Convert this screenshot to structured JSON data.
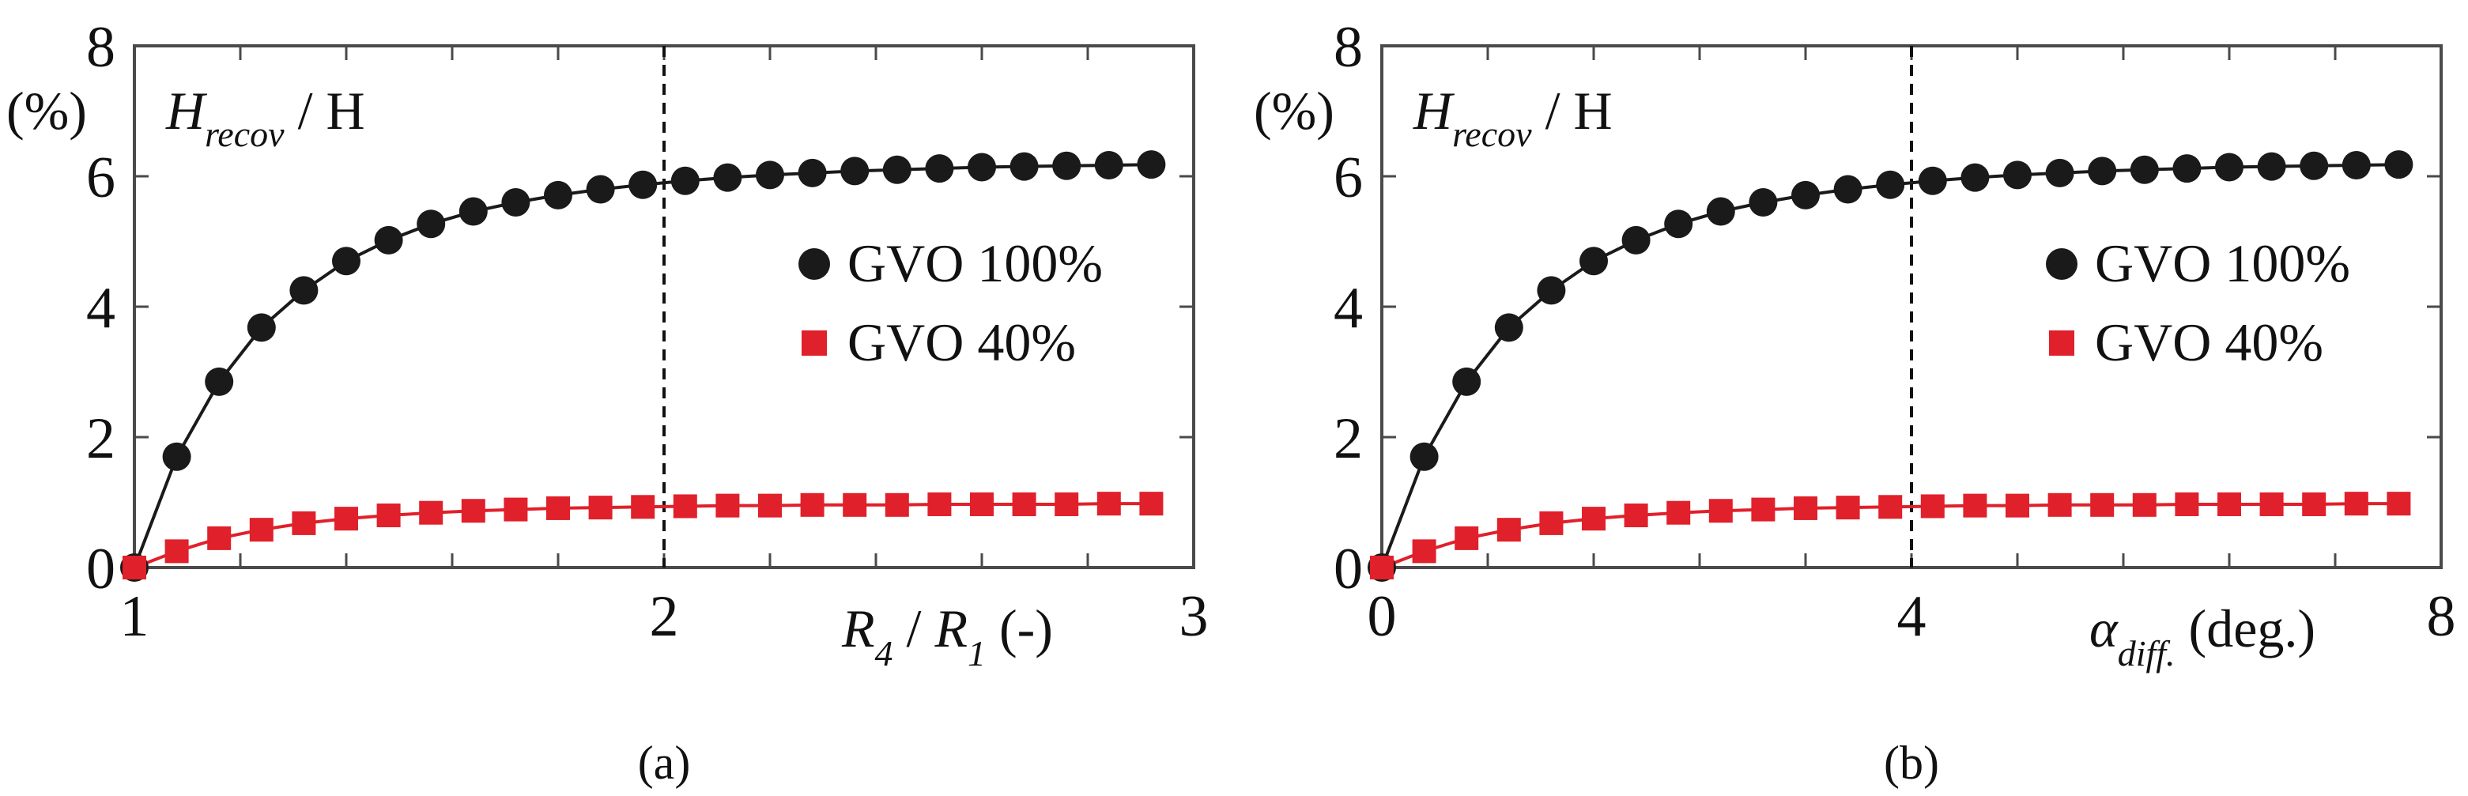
{
  "chart_data": [
    {
      "type": "line",
      "panel": "a",
      "caption": "(a)",
      "ylabel_main": "H",
      "ylabel_sub": "recov",
      "ylabel_tail": "/ H",
      "ylabel_unit": "(%)",
      "xlabel_parts": [
        {
          "t": "R",
          "style": "italic"
        },
        {
          "t": "4",
          "style": "sub"
        },
        {
          "t": " / ",
          "style": "normal"
        },
        {
          "t": "R",
          "style": "italic"
        },
        {
          "t": "1",
          "style": "sub"
        },
        {
          "t": " (-)",
          "style": "normal"
        }
      ],
      "xlim": [
        1,
        3
      ],
      "ylim": [
        0,
        8
      ],
      "xticks": [
        1,
        2,
        3
      ],
      "xtick_labels": [
        "1",
        "2",
        "3"
      ],
      "yticks": [
        0,
        2,
        4,
        6,
        8
      ],
      "ytick_labels": [
        "0",
        "2",
        "4",
        "6",
        "8"
      ],
      "vline_x": 2,
      "legend_position": "center-right",
      "series": [
        {
          "name": "GVO 100%",
          "marker": "circle",
          "color": "#1a1a1a",
          "x": [
            1.0,
            1.08,
            1.16,
            1.24,
            1.32,
            1.4,
            1.48,
            1.56,
            1.64,
            1.72,
            1.8,
            1.88,
            1.96,
            2.04,
            2.12,
            2.2,
            2.28,
            2.36,
            2.44,
            2.52,
            2.6,
            2.68,
            2.76,
            2.84,
            2.92
          ],
          "values": [
            0.0,
            1.7,
            2.85,
            3.68,
            4.25,
            4.7,
            5.02,
            5.27,
            5.46,
            5.6,
            5.71,
            5.8,
            5.87,
            5.93,
            5.98,
            6.02,
            6.05,
            6.08,
            6.1,
            6.12,
            6.14,
            6.15,
            6.16,
            6.17,
            6.18
          ]
        },
        {
          "name": "GVO 40%",
          "marker": "square",
          "color": "#e0202a",
          "x": [
            1.0,
            1.08,
            1.16,
            1.24,
            1.32,
            1.4,
            1.48,
            1.56,
            1.64,
            1.72,
            1.8,
            1.88,
            1.96,
            2.04,
            2.12,
            2.2,
            2.28,
            2.36,
            2.44,
            2.52,
            2.6,
            2.68,
            2.76,
            2.84,
            2.92
          ],
          "values": [
            0.0,
            0.25,
            0.45,
            0.58,
            0.68,
            0.75,
            0.8,
            0.84,
            0.87,
            0.89,
            0.91,
            0.92,
            0.93,
            0.94,
            0.95,
            0.95,
            0.96,
            0.96,
            0.96,
            0.97,
            0.97,
            0.97,
            0.97,
            0.98,
            0.98
          ]
        }
      ]
    },
    {
      "type": "line",
      "panel": "b",
      "caption": "(b)",
      "ylabel_main": "H",
      "ylabel_sub": "recov",
      "ylabel_tail": "/ H",
      "ylabel_unit": "(%)",
      "xlabel_parts": [
        {
          "t": "α",
          "style": "italic"
        },
        {
          "t": "diff.",
          "style": "sub"
        },
        {
          "t": " (deg.)",
          "style": "normal"
        }
      ],
      "xlim": [
        0,
        8
      ],
      "ylim": [
        0,
        8
      ],
      "xticks": [
        0,
        4,
        8
      ],
      "xtick_labels": [
        "0",
        "4",
        "8"
      ],
      "yticks": [
        0,
        2,
        4,
        6,
        8
      ],
      "ytick_labels": [
        "0",
        "2",
        "4",
        "6",
        "8"
      ],
      "vline_x": 4,
      "legend_position": "center-right",
      "series": [
        {
          "name": "GVO 100%",
          "marker": "circle",
          "color": "#1a1a1a",
          "x": [
            0.0,
            0.32,
            0.64,
            0.96,
            1.28,
            1.6,
            1.92,
            2.24,
            2.56,
            2.88,
            3.2,
            3.52,
            3.84,
            4.16,
            4.48,
            4.8,
            5.12,
            5.44,
            5.76,
            6.08,
            6.4,
            6.72,
            7.04,
            7.36,
            7.68
          ],
          "values": [
            0.0,
            1.7,
            2.85,
            3.68,
            4.25,
            4.7,
            5.02,
            5.27,
            5.46,
            5.6,
            5.71,
            5.8,
            5.87,
            5.93,
            5.98,
            6.02,
            6.05,
            6.08,
            6.1,
            6.12,
            6.14,
            6.15,
            6.16,
            6.17,
            6.18
          ]
        },
        {
          "name": "GVO 40%",
          "marker": "square",
          "color": "#e0202a",
          "x": [
            0.0,
            0.32,
            0.64,
            0.96,
            1.28,
            1.6,
            1.92,
            2.24,
            2.56,
            2.88,
            3.2,
            3.52,
            3.84,
            4.16,
            4.48,
            4.8,
            5.12,
            5.44,
            5.76,
            6.08,
            6.4,
            6.72,
            7.04,
            7.36,
            7.68
          ],
          "values": [
            0.0,
            0.25,
            0.45,
            0.58,
            0.68,
            0.75,
            0.8,
            0.84,
            0.87,
            0.89,
            0.91,
            0.92,
            0.93,
            0.94,
            0.95,
            0.95,
            0.96,
            0.96,
            0.96,
            0.97,
            0.97,
            0.97,
            0.97,
            0.98,
            0.98
          ]
        }
      ]
    }
  ]
}
